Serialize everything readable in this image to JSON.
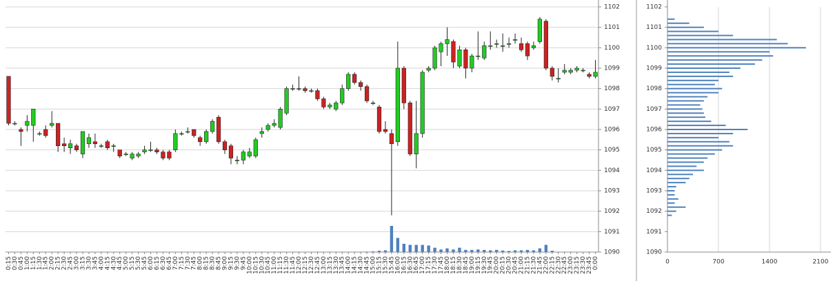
{
  "chart_data": [
    {
      "type": "candlestick",
      "categories": [
        "0:15",
        "0:30",
        "0:45",
        "1:00",
        "1:15",
        "1:30",
        "1:45",
        "2:00",
        "2:15",
        "2:30",
        "2:45",
        "3:00",
        "3:15",
        "3:30",
        "3:45",
        "4:00",
        "4:15",
        "4:30",
        "4:45",
        "5:00",
        "5:15",
        "5:30",
        "5:45",
        "6:00",
        "6:15",
        "6:30",
        "6:45",
        "7:00",
        "7:15",
        "7:30",
        "7:45",
        "8:00",
        "8:15",
        "8:30",
        "8:45",
        "9:00",
        "9:15",
        "9:30",
        "9:45",
        "10:00",
        "10:15",
        "10:30",
        "10:45",
        "11:00",
        "11:15",
        "11:30",
        "11:45",
        "12:00",
        "12:15",
        "12:30",
        "12:45",
        "13:00",
        "13:15",
        "13:30",
        "13:45",
        "14:00",
        "14:15",
        "14:30",
        "14:45",
        "15:00",
        "15:15",
        "15:30",
        "15:45",
        "16:00",
        "16:15",
        "16:30",
        "16:45",
        "17:00",
        "17:15",
        "17:30",
        "17:45",
        "18:00",
        "18:15",
        "18:30",
        "18:45",
        "19:00",
        "19:15",
        "19:30",
        "19:45",
        "20:00",
        "20:15",
        "20:30",
        "20:45",
        "21:00",
        "21:15",
        "21:30",
        "21:45",
        "22:00",
        "22:15",
        "22:30",
        "22:45",
        "23:00",
        "23:15",
        "23:30",
        "23:45",
        "0:00"
      ],
      "open": [
        1098.6,
        1096.3,
        1096.0,
        1096.2,
        1096.2,
        1095.8,
        1096.0,
        1096.2,
        1096.3,
        1095.3,
        1095.1,
        1095.2,
        1094.8,
        1095.3,
        1095.4,
        1095.2,
        1095.4,
        1095.2,
        1095.0,
        1094.8,
        1094.6,
        1094.7,
        1094.9,
        1095.0,
        1095.0,
        1094.9,
        1094.9,
        1095.0,
        1095.8,
        1095.9,
        1096.0,
        1095.6,
        1095.4,
        1095.9,
        1096.6,
        1095.4,
        1095.2,
        1094.5,
        1094.5,
        1094.7,
        1094.7,
        1095.8,
        1096.0,
        1096.2,
        1096.1,
        1096.8,
        1098.0,
        1098.0,
        1098.0,
        1097.9,
        1097.9,
        1097.5,
        1097.1,
        1097.0,
        1097.3,
        1098.0,
        1098.7,
        1098.3,
        1098.1,
        1097.3,
        1097.1,
        1096.0,
        1095.8,
        1095.4,
        1099.0,
        1097.3,
        1094.8,
        1095.8,
        1098.9,
        1099.0,
        1099.8,
        1100.2,
        1100.3,
        1099.1,
        1099.9,
        1099.0,
        1099.6,
        1099.5,
        1100.1,
        1100.2,
        1100.1,
        1100.2,
        1100.4,
        1100.2,
        1100.2,
        1100.0,
        1100.3,
        1101.3,
        1099.0,
        1098.5,
        1098.8,
        1098.8,
        1098.9,
        1098.9,
        1098.7,
        1098.6
      ],
      "high": [
        1098.6,
        1096.4,
        1096.1,
        1096.7,
        1097.0,
        1095.9,
        1096.2,
        1096.9,
        1096.3,
        1095.6,
        1095.5,
        1095.3,
        1095.9,
        1095.8,
        1095.8,
        1095.3,
        1095.5,
        1095.3,
        1095.0,
        1094.9,
        1094.9,
        1094.9,
        1095.2,
        1095.4,
        1095.1,
        1095.0,
        1095.0,
        1096.0,
        1095.9,
        1096.1,
        1096.0,
        1095.7,
        1096.0,
        1096.5,
        1096.7,
        1095.5,
        1095.3,
        1094.7,
        1095.0,
        1095.1,
        1095.6,
        1096.1,
        1096.3,
        1096.5,
        1097.1,
        1098.1,
        1098.2,
        1098.6,
        1098.1,
        1098.0,
        1098.0,
        1097.6,
        1097.3,
        1097.4,
        1098.2,
        1098.8,
        1098.8,
        1098.4,
        1098.2,
        1097.4,
        1097.2,
        1096.4,
        1096.0,
        1100.3,
        1099.1,
        1097.4,
        1097.4,
        1098.9,
        1099.1,
        1100.1,
        1100.3,
        1101.0,
        1100.4,
        1100.1,
        1100.0,
        1099.7,
        1100.8,
        1100.3,
        1100.8,
        1100.4,
        1100.7,
        1100.5,
        1100.7,
        1100.5,
        1100.3,
        1100.3,
        1101.5,
        1101.4,
        1099.1,
        1099.0,
        1099.2,
        1099.0,
        1099.1,
        1099.0,
        1098.8,
        1099.4
      ],
      "low": [
        1096.2,
        1096.2,
        1095.2,
        1095.9,
        1095.4,
        1095.7,
        1095.6,
        1096.1,
        1094.9,
        1094.9,
        1094.8,
        1094.9,
        1094.6,
        1095.1,
        1095.1,
        1095.1,
        1095.0,
        1094.9,
        1094.6,
        1094.7,
        1094.5,
        1094.6,
        1094.8,
        1094.9,
        1094.8,
        1094.5,
        1094.5,
        1094.9,
        1095.7,
        1095.8,
        1095.6,
        1095.2,
        1095.3,
        1095.8,
        1095.3,
        1094.8,
        1094.3,
        1094.3,
        1094.3,
        1094.6,
        1094.6,
        1095.6,
        1095.9,
        1096.1,
        1096.0,
        1096.7,
        1097.9,
        1097.9,
        1097.8,
        1097.8,
        1097.4,
        1097.0,
        1097.0,
        1096.9,
        1097.2,
        1097.9,
        1098.2,
        1097.9,
        1097.3,
        1097.2,
        1095.8,
        1095.8,
        1091.8,
        1095.2,
        1097.0,
        1094.7,
        1094.1,
        1095.6,
        1098.8,
        1098.9,
        1099.1,
        1099.6,
        1099.0,
        1099.0,
        1098.5,
        1098.8,
        1099.4,
        1099.4,
        1099.9,
        1100.0,
        1099.8,
        1100.0,
        1100.2,
        1099.8,
        1099.4,
        1099.9,
        1100.2,
        1098.9,
        1098.4,
        1098.3,
        1098.7,
        1098.7,
        1098.8,
        1098.8,
        1098.5,
        1098.5
      ],
      "close": [
        1096.3,
        1096.3,
        1095.9,
        1096.4,
        1097.0,
        1095.8,
        1095.7,
        1096.3,
        1095.2,
        1095.2,
        1095.3,
        1095.0,
        1095.9,
        1095.6,
        1095.3,
        1095.2,
        1095.1,
        1095.2,
        1094.7,
        1094.8,
        1094.8,
        1094.8,
        1095.0,
        1095.0,
        1094.9,
        1094.6,
        1094.6,
        1095.8,
        1095.8,
        1095.9,
        1095.7,
        1095.4,
        1095.9,
        1096.4,
        1095.4,
        1095.0,
        1094.6,
        1094.5,
        1094.9,
        1094.9,
        1095.5,
        1095.9,
        1096.2,
        1096.3,
        1097.0,
        1098.0,
        1098.0,
        1098.0,
        1097.9,
        1097.9,
        1097.5,
        1097.1,
        1097.2,
        1097.3,
        1098.0,
        1098.7,
        1098.3,
        1098.1,
        1097.4,
        1097.3,
        1095.9,
        1095.9,
        1095.3,
        1099.0,
        1097.3,
        1094.8,
        1095.8,
        1098.8,
        1099.0,
        1100.0,
        1100.2,
        1100.4,
        1099.3,
        1099.9,
        1099.0,
        1099.6,
        1099.6,
        1100.1,
        1100.1,
        1100.2,
        1100.1,
        1100.2,
        1100.4,
        1099.9,
        1099.6,
        1100.1,
        1101.4,
        1099.0,
        1098.6,
        1098.5,
        1098.9,
        1098.9,
        1099.0,
        1098.9,
        1098.6,
        1098.8
      ],
      "volume": [
        0,
        0,
        0,
        0,
        0,
        0,
        0,
        0,
        0,
        0,
        0,
        0,
        0,
        0,
        0,
        0,
        0,
        0,
        0,
        0,
        0,
        0,
        0,
        0,
        0,
        0,
        0,
        0,
        0,
        0,
        0,
        0,
        0,
        0,
        0,
        0,
        0,
        0,
        0,
        0,
        0,
        0,
        0,
        0,
        0,
        0,
        0,
        0,
        0,
        0,
        0,
        0,
        0,
        0,
        0,
        0,
        0,
        10,
        20,
        30,
        60,
        80,
        1200,
        650,
        380,
        330,
        330,
        330,
        300,
        200,
        120,
        170,
        120,
        200,
        100,
        100,
        120,
        100,
        80,
        100,
        70,
        50,
        80,
        80,
        100,
        80,
        170,
        330,
        60,
        0,
        0,
        0,
        0,
        0,
        0,
        0
      ],
      "up_color": "#22cc22",
      "down_color": "#cc2222",
      "volume_color": "#4f81bd",
      "ylim": [
        1090,
        1102
      ],
      "yticks": [
        1090,
        1091,
        1092,
        1093,
        1094,
        1095,
        1096,
        1097,
        1098,
        1099,
        1100,
        1101,
        1102
      ],
      "grid": true
    },
    {
      "type": "barh",
      "y": [
        1101.4,
        1101.2,
        1101.0,
        1100.8,
        1100.6,
        1100.4,
        1100.2,
        1100.0,
        1099.8,
        1099.6,
        1099.4,
        1099.2,
        1099.0,
        1098.8,
        1098.6,
        1098.4,
        1098.2,
        1098.0,
        1097.8,
        1097.6,
        1097.4,
        1097.2,
        1097.0,
        1096.8,
        1096.6,
        1096.4,
        1096.2,
        1096.0,
        1095.8,
        1095.6,
        1095.4,
        1095.2,
        1095.0,
        1094.8,
        1094.6,
        1094.4,
        1094.2,
        1094.0,
        1093.8,
        1093.6,
        1093.4,
        1093.2,
        1093.0,
        1092.8,
        1092.6,
        1092.4,
        1092.2,
        1092.0,
        1091.8
      ],
      "values": [
        100,
        300,
        500,
        700,
        900,
        1500,
        1650,
        1900,
        1400,
        1450,
        1300,
        1200,
        1000,
        850,
        900,
        700,
        650,
        750,
        700,
        550,
        500,
        450,
        480,
        500,
        520,
        600,
        800,
        1100,
        900,
        700,
        850,
        900,
        750,
        650,
        550,
        500,
        400,
        500,
        350,
        300,
        250,
        120,
        100,
        100,
        150,
        100,
        250,
        120,
        60
      ],
      "color": "#4f81bd",
      "xlim": [
        0,
        2100
      ],
      "xticks": [
        0,
        700,
        1400,
        2100
      ],
      "ylim": [
        1090,
        1102
      ],
      "yticks": [
        1090,
        1091,
        1092,
        1093,
        1094,
        1095,
        1096,
        1097,
        1098,
        1099,
        1100,
        1101,
        1102
      ],
      "grid": true
    }
  ]
}
